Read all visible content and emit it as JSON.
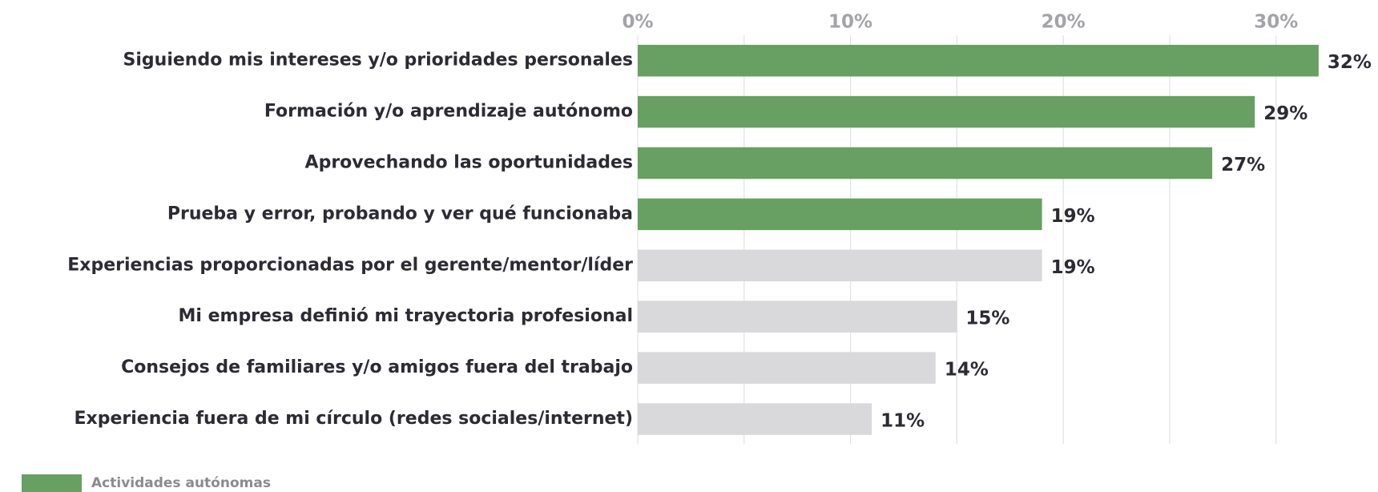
{
  "chart_data": {
    "type": "hbar",
    "categories": [
      "Siguiendo mis intereses y/o prioridades personales",
      "Formación y/o aprendizaje autónomo",
      "Aprovechando las oportunidades",
      "Prueba y error, probando y ver qué funcionaba",
      "Experiencias proporcionadas por el gerente/mentor/líder",
      "Mi empresa definió mi trayectoria profesional",
      "Consejos de familiares y/o amigos fuera del trabajo",
      "Experiencia fuera de mi círculo (redes sociales/internet)"
    ],
    "values": [
      32,
      29,
      27,
      19,
      19,
      15,
      14,
      11
    ],
    "value_labels": [
      "32%",
      "29%",
      "27%",
      "19%",
      "19%",
      "15%",
      "14%",
      "11%"
    ],
    "colors": [
      "#689f63",
      "#689f63",
      "#689f63",
      "#689f63",
      "#d9d9db",
      "#d9d9db",
      "#d9d9db",
      "#d9d9db"
    ],
    "xlim": [
      0,
      34
    ],
    "xticks": [
      {
        "value": 0,
        "label": "0%"
      },
      {
        "value": 10,
        "label": "10%"
      },
      {
        "value": 20,
        "label": "20%"
      },
      {
        "value": 30,
        "label": "30%"
      }
    ],
    "minor_xticks": [
      5,
      15,
      25
    ],
    "grid": true,
    "legend": [
      {
        "name": "Actividades autónomas",
        "color": "#689f63"
      }
    ]
  }
}
